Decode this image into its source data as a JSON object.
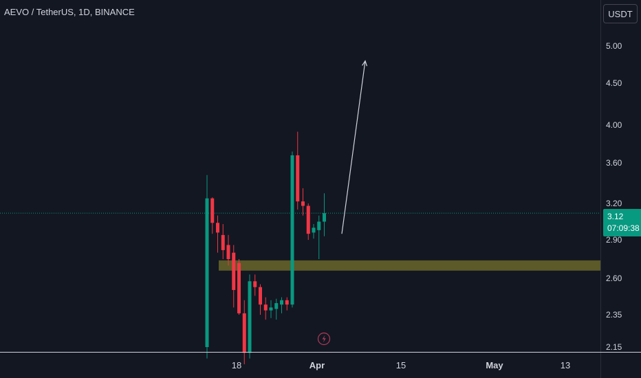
{
  "chart_title": "AEVO / TetherUS, 1D, BINANCE",
  "currency_button": "USDT",
  "last_price": "3.12",
  "countdown": "07:09:38",
  "colors": {
    "background": "#131722",
    "up": "#089981",
    "down": "#f23645",
    "zone": "#5b5a28",
    "text": "#d1d4dc",
    "grid_line": "#2a2e39"
  },
  "icons": [
    "lightning-icon"
  ],
  "chart_data": {
    "type": "candlestick",
    "y_axis_labels": [
      "5.00",
      "4.50",
      "4.00",
      "3.60",
      "3.20",
      "2.90",
      "2.60",
      "2.35",
      "2.15"
    ],
    "x_axis_labels": [
      "18",
      "Apr",
      "15",
      "May",
      "13"
    ],
    "candles": [
      {
        "o": 2.15,
        "h": 3.48,
        "l": 2.05,
        "c": 3.25
      },
      {
        "o": 3.25,
        "h": 3.26,
        "l": 2.95,
        "c": 3.04
      },
      {
        "o": 3.04,
        "h": 3.1,
        "l": 2.8,
        "c": 2.96
      },
      {
        "o": 2.94,
        "h": 3.03,
        "l": 2.75,
        "c": 2.82
      },
      {
        "o": 2.86,
        "h": 2.94,
        "l": 2.7,
        "c": 2.75
      },
      {
        "o": 2.8,
        "h": 2.86,
        "l": 2.4,
        "c": 2.52
      },
      {
        "o": 2.72,
        "h": 2.75,
        "l": 2.35,
        "c": 2.36
      },
      {
        "o": 2.36,
        "h": 2.45,
        "l": 2.0,
        "c": 2.1
      },
      {
        "o": 2.1,
        "h": 2.63,
        "l": 2.05,
        "c": 2.58
      },
      {
        "o": 2.58,
        "h": 2.63,
        "l": 2.48,
        "c": 2.54
      },
      {
        "o": 2.54,
        "h": 2.56,
        "l": 2.35,
        "c": 2.42
      },
      {
        "o": 2.42,
        "h": 2.47,
        "l": 2.32,
        "c": 2.38
      },
      {
        "o": 2.38,
        "h": 2.45,
        "l": 2.33,
        "c": 2.4
      },
      {
        "o": 2.39,
        "h": 2.46,
        "l": 2.32,
        "c": 2.43
      },
      {
        "o": 2.42,
        "h": 2.47,
        "l": 2.36,
        "c": 2.45
      },
      {
        "o": 2.45,
        "h": 2.47,
        "l": 2.38,
        "c": 2.42
      },
      {
        "o": 2.42,
        "h": 3.72,
        "l": 2.4,
        "c": 3.68
      },
      {
        "o": 3.68,
        "h": 3.93,
        "l": 3.15,
        "c": 3.22
      },
      {
        "o": 3.22,
        "h": 3.35,
        "l": 3.1,
        "c": 3.18
      },
      {
        "o": 3.18,
        "h": 3.2,
        "l": 2.9,
        "c": 2.95
      },
      {
        "o": 2.96,
        "h": 3.03,
        "l": 2.91,
        "c": 3.0
      },
      {
        "o": 2.98,
        "h": 3.1,
        "l": 2.75,
        "c": 3.05
      },
      {
        "o": 3.05,
        "h": 3.3,
        "l": 2.93,
        "c": 3.12
      }
    ],
    "last_price": 3.12,
    "support_zone": [
      2.74,
      2.66
    ],
    "projection_arrow": {
      "from_price": 2.95,
      "to_price": 4.8
    }
  }
}
